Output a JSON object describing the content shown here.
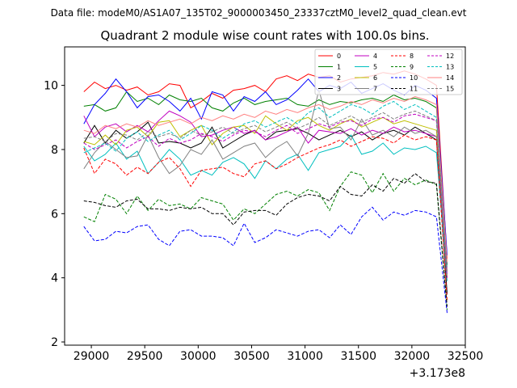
{
  "chart_data": {
    "type": "line",
    "suptitle": "Data file: modeM0/AS1A07_135T02_9000003450_23337cztM0_level2_quad_clean.evt",
    "title": "Quadrant 2 module wise count rates with 100.0s bins.",
    "xlabel": "",
    "ylabel": "",
    "x_offset_label": "+3.173e8",
    "xlim": [
      28750,
      32500
    ],
    "ylim": [
      1.9,
      11.2
    ],
    "xticks": [
      29000,
      29500,
      30000,
      30500,
      31000,
      31500,
      32000,
      32500
    ],
    "xtick_labels": [
      "29000",
      "29500",
      "30000",
      "30500",
      "31000",
      "31500",
      "32000",
      "32500"
    ],
    "yticks": [
      2,
      4,
      6,
      8,
      10
    ],
    "ytick_labels": [
      "2",
      "4",
      "6",
      "8",
      "10"
    ],
    "grid": false,
    "legend_position": "top-right",
    "x": [
      28930,
      29030,
      29130,
      29230,
      29330,
      29430,
      29530,
      29630,
      29730,
      29830,
      29930,
      30030,
      30130,
      30230,
      30330,
      30430,
      30530,
      30630,
      30730,
      30830,
      30930,
      31030,
      31130,
      31230,
      31330,
      31430,
      31530,
      31630,
      31730,
      31830,
      31930,
      32030,
      32130,
      32230,
      32330
    ],
    "series": [
      {
        "name": "0",
        "color": "#ff0000",
        "dash": "solid",
        "values": [
          9.8,
          10.1,
          9.9,
          10.0,
          9.85,
          9.95,
          9.7,
          9.8,
          10.05,
          10.0,
          9.3,
          9.5,
          9.75,
          9.6,
          9.85,
          9.9,
          10.0,
          9.8,
          10.2,
          10.3,
          10.15,
          10.35,
          10.25,
          10.3,
          10.1,
          10.2,
          10.25,
          10.3,
          10.4,
          10.35,
          10.45,
          10.35,
          10.2,
          10.0,
          4.6
        ]
      },
      {
        "name": "1",
        "color": "#008000",
        "dash": "solid",
        "values": [
          9.35,
          9.4,
          9.2,
          9.3,
          9.8,
          9.5,
          9.6,
          9.4,
          9.7,
          9.55,
          9.5,
          9.6,
          9.3,
          9.2,
          9.45,
          9.6,
          9.4,
          9.5,
          9.55,
          9.6,
          9.4,
          9.35,
          9.55,
          9.4,
          9.5,
          9.45,
          9.55,
          9.6,
          9.5,
          9.7,
          9.55,
          9.6,
          9.5,
          9.3,
          4.4
        ]
      },
      {
        "name": "2",
        "color": "#0000ff",
        "dash": "solid",
        "values": [
          8.8,
          9.4,
          9.75,
          10.2,
          9.8,
          9.3,
          9.65,
          9.7,
          9.5,
          9.2,
          9.6,
          8.95,
          9.8,
          9.7,
          9.2,
          9.65,
          9.5,
          9.8,
          9.4,
          9.55,
          9.85,
          10.2,
          9.8,
          10.0,
          9.9,
          10.1,
          9.75,
          9.9,
          10.05,
          9.85,
          9.7,
          10.0,
          9.85,
          9.6,
          4.7
        ]
      },
      {
        "name": "3",
        "color": "#000000",
        "dash": "solid",
        "values": [
          8.2,
          8.75,
          8.2,
          8.6,
          8.35,
          8.55,
          8.85,
          8.2,
          8.25,
          8.2,
          8.05,
          8.2,
          8.7,
          8.05,
          8.25,
          8.45,
          8.6,
          8.3,
          8.55,
          8.6,
          8.65,
          8.5,
          8.3,
          8.45,
          8.6,
          8.4,
          8.55,
          8.3,
          8.5,
          8.6,
          8.45,
          8.7,
          8.5,
          8.3,
          3.5
        ]
      },
      {
        "name": "4",
        "color": "#c000c0",
        "dash": "solid",
        "values": [
          9.05,
          8.4,
          8.7,
          8.8,
          8.55,
          8.75,
          8.55,
          8.9,
          9.2,
          9.05,
          8.85,
          8.4,
          8.45,
          8.6,
          8.7,
          8.5,
          8.6,
          8.3,
          8.4,
          8.55,
          8.7,
          8.2,
          8.6,
          8.55,
          8.5,
          8.65,
          8.45,
          8.6,
          8.5,
          8.7,
          8.55,
          8.6,
          8.5,
          8.4,
          4.2
        ]
      },
      {
        "name": "5",
        "color": "#00bfbf",
        "dash": "solid",
        "values": [
          8.1,
          7.65,
          7.85,
          8.2,
          7.7,
          7.95,
          7.25,
          7.6,
          8.0,
          7.7,
          7.2,
          7.35,
          7.2,
          7.6,
          7.75,
          7.55,
          7.1,
          7.65,
          7.4,
          7.7,
          7.85,
          7.35,
          7.9,
          8.0,
          8.1,
          8.45,
          7.85,
          7.95,
          8.2,
          7.85,
          8.05,
          8.0,
          8.1,
          7.9,
          3.9
        ]
      },
      {
        "name": "6",
        "color": "#bfbf00",
        "dash": "solid",
        "values": [
          8.25,
          8.15,
          8.45,
          8.15,
          8.6,
          8.7,
          8.4,
          8.85,
          8.9,
          8.4,
          8.6,
          8.75,
          8.15,
          8.5,
          8.7,
          8.75,
          8.5,
          9.05,
          8.8,
          8.6,
          8.9,
          9.0,
          8.75,
          8.6,
          8.8,
          8.95,
          8.7,
          8.85,
          9.0,
          8.8,
          8.9,
          8.8,
          8.7,
          8.6,
          4.0
        ]
      },
      {
        "name": "7",
        "color": "#808080",
        "dash": "solid",
        "values": [
          7.4,
          7.9,
          8.25,
          8.0,
          7.75,
          7.8,
          8.45,
          7.75,
          7.25,
          7.5,
          8.0,
          7.85,
          8.3,
          7.7,
          7.9,
          8.1,
          8.2,
          7.75,
          8.05,
          8.25,
          7.8,
          8.5,
          9.85,
          8.65,
          8.7,
          8.3,
          8.95,
          8.45,
          8.6,
          8.4,
          8.7,
          8.5,
          8.6,
          8.4,
          4.1
        ]
      },
      {
        "name": "8",
        "color": "#ff0000",
        "dash": "dashed",
        "values": [
          8.05,
          7.25,
          7.7,
          7.55,
          7.2,
          7.45,
          7.25,
          7.6,
          7.75,
          7.4,
          6.85,
          7.35,
          7.4,
          7.45,
          7.25,
          7.15,
          7.55,
          7.65,
          7.4,
          7.55,
          7.75,
          7.9,
          8.05,
          8.15,
          8.3,
          8.1,
          8.25,
          8.4,
          8.35,
          8.2,
          8.45,
          8.3,
          8.4,
          8.3,
          3.3
        ]
      },
      {
        "name": "9",
        "color": "#008000",
        "dash": "dashed",
        "values": [
          5.9,
          5.75,
          6.6,
          6.45,
          6.0,
          6.55,
          6.1,
          6.45,
          6.25,
          6.3,
          6.15,
          6.5,
          6.4,
          6.3,
          5.8,
          6.15,
          6.0,
          6.3,
          6.6,
          6.7,
          6.55,
          6.75,
          6.65,
          6.1,
          6.85,
          7.3,
          7.2,
          6.65,
          7.25,
          6.7,
          7.1,
          6.9,
          7.05,
          6.9,
          3.0
        ]
      },
      {
        "name": "10",
        "color": "#0000ff",
        "dash": "dashed",
        "values": [
          5.6,
          5.15,
          5.2,
          5.45,
          5.4,
          5.6,
          5.65,
          5.2,
          5.0,
          5.45,
          5.5,
          5.3,
          5.3,
          5.25,
          5.0,
          5.7,
          5.1,
          5.25,
          5.5,
          5.4,
          5.3,
          5.45,
          5.5,
          5.25,
          5.65,
          5.35,
          5.9,
          6.2,
          5.8,
          6.05,
          5.95,
          6.1,
          6.05,
          5.9,
          2.9
        ]
      },
      {
        "name": "11",
        "color": "#000000",
        "dash": "dashed",
        "values": [
          6.4,
          6.35,
          6.25,
          6.2,
          6.4,
          6.45,
          6.15,
          6.15,
          6.1,
          6.2,
          6.15,
          6.2,
          6.0,
          6.0,
          5.65,
          6.05,
          6.1,
          6.1,
          5.95,
          6.3,
          6.5,
          6.6,
          6.55,
          6.4,
          6.85,
          6.6,
          6.55,
          6.9,
          6.7,
          7.1,
          6.95,
          7.25,
          7.0,
          6.95,
          3.1
        ]
      },
      {
        "name": "12",
        "color": "#c000c0",
        "dash": "dashed",
        "values": [
          8.2,
          8.0,
          8.15,
          8.3,
          8.05,
          8.25,
          8.4,
          8.1,
          8.35,
          8.2,
          8.3,
          8.5,
          8.4,
          8.25,
          8.45,
          8.6,
          8.55,
          8.4,
          8.6,
          8.75,
          8.5,
          8.65,
          8.8,
          8.7,
          8.85,
          8.9,
          8.75,
          8.95,
          9.0,
          8.85,
          9.05,
          9.1,
          9.0,
          8.9,
          4.0
        ]
      },
      {
        "name": "13",
        "color": "#00bfbf",
        "dash": "dashed",
        "values": [
          7.9,
          8.05,
          8.2,
          7.95,
          8.35,
          8.55,
          8.25,
          8.45,
          8.6,
          8.3,
          8.5,
          8.75,
          8.6,
          8.35,
          8.55,
          8.8,
          8.9,
          8.7,
          8.85,
          9.0,
          8.8,
          9.15,
          9.3,
          9.0,
          9.2,
          9.4,
          9.3,
          9.1,
          9.35,
          9.5,
          9.25,
          9.4,
          9.2,
          9.0,
          4.3
        ]
      },
      {
        "name": "14",
        "color": "#ff8080",
        "dash": "solid",
        "values": [
          8.6,
          8.5,
          8.75,
          8.65,
          8.8,
          8.7,
          8.9,
          8.75,
          8.85,
          8.95,
          8.8,
          9.0,
          8.9,
          9.05,
          8.95,
          9.1,
          9.0,
          9.2,
          9.1,
          9.25,
          9.15,
          9.3,
          9.4,
          9.25,
          9.35,
          9.5,
          9.4,
          9.55,
          9.45,
          9.6,
          9.5,
          9.65,
          9.55,
          9.4,
          4.5
        ]
      },
      {
        "name": "15",
        "color": "#808080",
        "dash": "dashed",
        "values": [
          8.35,
          8.4,
          8.25,
          8.5,
          8.45,
          8.3,
          8.55,
          8.4,
          8.5,
          8.35,
          8.6,
          8.45,
          8.55,
          8.7,
          8.5,
          8.65,
          8.75,
          8.55,
          8.7,
          8.85,
          8.65,
          8.8,
          9.0,
          8.75,
          8.9,
          9.05,
          8.85,
          9.0,
          9.15,
          8.95,
          9.1,
          9.2,
          9.05,
          8.9,
          4.2
        ]
      }
    ]
  }
}
